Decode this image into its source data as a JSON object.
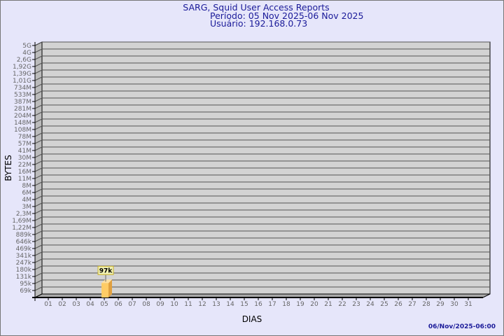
{
  "chart_data": {
    "type": "bar",
    "title": "SARG, Squid User Access Reports",
    "subtitle": "Período: 05 Nov 2025-06 Nov 2025",
    "subtitle2": "Usuário: 192.168.0.73",
    "xlabel": "DIAS",
    "ylabel": "BYTES",
    "yscale": "log",
    "ytick_labels": [
      "5G",
      "4G",
      "2,6G",
      "1,92G",
      "1,39G",
      "1,01G",
      "734M",
      "533M",
      "387M",
      "281M",
      "204M",
      "148M",
      "108M",
      "78M",
      "57M",
      "41M",
      "30M",
      "22M",
      "16M",
      "11M",
      "8M",
      "6M",
      "4M",
      "3M",
      "2,3M",
      "1,69M",
      "1,22M",
      "889k",
      "646k",
      "469k",
      "341k",
      "247k",
      "180k",
      "131k",
      "95k",
      "69k"
    ],
    "categories": [
      "01",
      "02",
      "03",
      "04",
      "05",
      "06",
      "07",
      "08",
      "09",
      "10",
      "11",
      "12",
      "13",
      "14",
      "15",
      "16",
      "17",
      "18",
      "19",
      "20",
      "21",
      "22",
      "23",
      "24",
      "25",
      "26",
      "27",
      "28",
      "29",
      "30",
      "31"
    ],
    "bars": [
      {
        "category": "05",
        "value": 97000,
        "label": "97k"
      }
    ],
    "grid": true,
    "colors": {
      "bar": "#ffcc66",
      "bar_side": "#e0a040",
      "wall": "#d3d3d3",
      "title": "#1a1a99",
      "background": "#e6e6fa"
    }
  },
  "footer": {
    "timestamp": "06/Nov/2025-06:00"
  }
}
